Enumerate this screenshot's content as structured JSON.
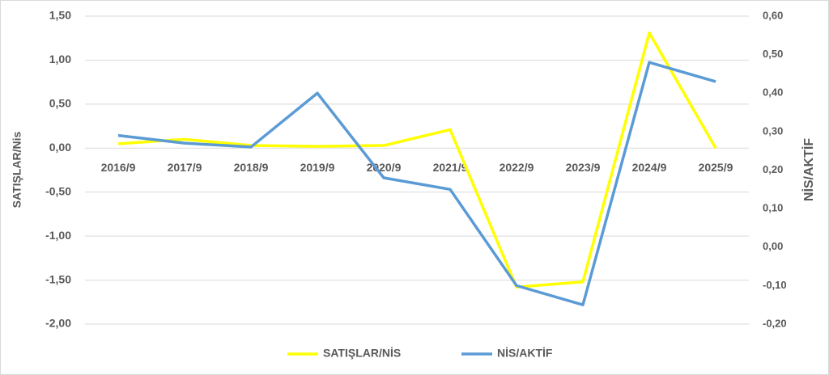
{
  "chart_data": {
    "type": "line",
    "y_label": "SATIŞLAR/Nis",
    "y2_label": "NİS/AKTİF",
    "categories": [
      "2016/9",
      "2017/9",
      "2018/9",
      "2019/9",
      "2020/9",
      "2021/9",
      "2022/9",
      "2023/9",
      "2024/9",
      "2025/9"
    ],
    "series": [
      {
        "name": "SATIŞLAR/NİS",
        "color": "#ffff00",
        "axis": "y",
        "values": [
          0.05,
          0.1,
          0.03,
          0.02,
          0.03,
          0.21,
          -1.58,
          -1.52,
          1.31,
          0.0
        ]
      },
      {
        "name": "NİS/AKTİF",
        "color": "#5b9bd5",
        "axis": "y2",
        "values": [
          0.29,
          0.27,
          0.26,
          0.4,
          0.18,
          0.15,
          -0.1,
          -0.15,
          0.48,
          0.43
        ]
      }
    ],
    "ylim": [
      -2.0,
      1.5
    ],
    "yticks": [
      {
        "value": 1.5,
        "label": "1,50"
      },
      {
        "value": 1.0,
        "label": "1,00"
      },
      {
        "value": 0.5,
        "label": "0,50"
      },
      {
        "value": 0,
        "label": "0,00"
      },
      {
        "value": -0.5,
        "label": "-0,50"
      },
      {
        "value": -1.0,
        "label": "-1,00"
      },
      {
        "value": -1.5,
        "label": "-1,50"
      },
      {
        "value": -2.0,
        "label": "-2,00"
      }
    ],
    "y2lim": [
      -0.2,
      0.6
    ],
    "y2ticks": [
      {
        "value": 0.6,
        "label": "0,60"
      },
      {
        "value": 0.5,
        "label": "0,50"
      },
      {
        "value": 0.4,
        "label": "0,40"
      },
      {
        "value": 0.3,
        "label": "0,30"
      },
      {
        "value": 0.2,
        "label": "0,20"
      },
      {
        "value": 0.1,
        "label": "0,10"
      },
      {
        "value": 0,
        "label": "0,00"
      },
      {
        "value": -0.1,
        "label": "-0,10"
      },
      {
        "value": -0.2,
        "label": "-0,20"
      }
    ],
    "grid": true,
    "legend": "bottom"
  }
}
